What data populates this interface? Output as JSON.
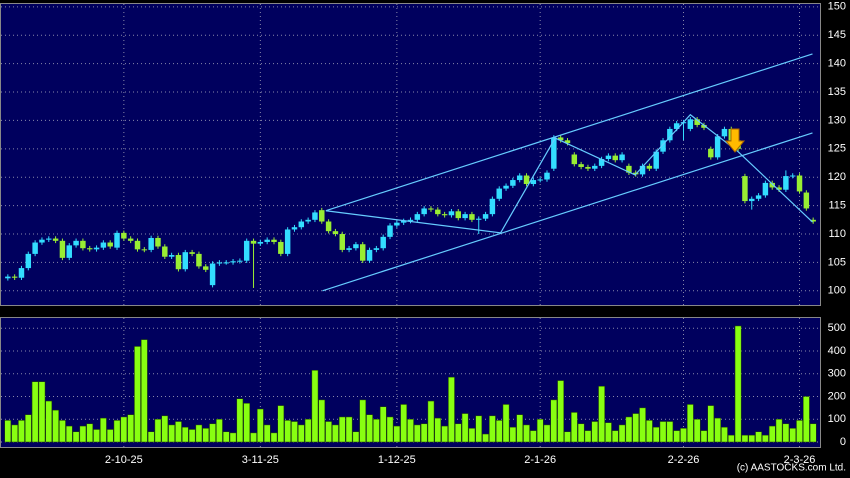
{
  "chart_data": [
    {
      "type": "candlestick",
      "xlim": [
        -1,
        119
      ],
      "ylim": [
        97.5,
        150.5
      ],
      "yticks": [
        100,
        105,
        110,
        115,
        120,
        125,
        130,
        135,
        140,
        145,
        150
      ],
      "xticks": [
        17,
        37,
        57,
        78,
        99,
        116
      ],
      "grid": true,
      "up_color": "#33ddff",
      "down_color": "#99ee33",
      "open": [
        102.2,
        102.5,
        102.3,
        104,
        106.5,
        108.5,
        109,
        109.2,
        108.8,
        105.8,
        108,
        108.8,
        107.5,
        107.3,
        107.6,
        108.5,
        107.6,
        110.2,
        109.2,
        108.8,
        107.3,
        107.2,
        109.3,
        107.8,
        106,
        106.3,
        103.8,
        106.8,
        106.5,
        104.3,
        101,
        104.8,
        105,
        105,
        105.2,
        105.3,
        108.8,
        108.3,
        108.6,
        109,
        108.6,
        106.5,
        110.8,
        111.2,
        112.2,
        112.5,
        114.2,
        112.2,
        110.5,
        110,
        107.2,
        107.5,
        108.2,
        105.3,
        107.2,
        107.5,
        109.5,
        111.5,
        112,
        112.3,
        112.5,
        113.5,
        114.5,
        114.3,
        113.5,
        113.3,
        114,
        112.8,
        113.5,
        112.5,
        112.7,
        113.5,
        116.2,
        118,
        118.5,
        119.5,
        120.3,
        118.8,
        119.5,
        119.6,
        121.5,
        127,
        126.5,
        124,
        122.3,
        121.8,
        121.5,
        122,
        123.2,
        123.8,
        123,
        122,
        120.8,
        120.5,
        122,
        121.5,
        124.5,
        126.5,
        128.5,
        129.5,
        128.5,
        130.2,
        129.2,
        125,
        123.5,
        127.2,
        128.5,
        126.5,
        120.2,
        115.8,
        116.2,
        116.8,
        119,
        118.2,
        117.8,
        120.2,
        120.3,
        117.3,
        112.5
      ],
      "high": [
        102.9,
        102.9,
        104.4,
        106.9,
        108.9,
        109.4,
        109.6,
        109.6,
        109.2,
        108.4,
        109.2,
        109.2,
        107.9,
        108,
        108.9,
        108.9,
        110.6,
        110.6,
        109.6,
        109.2,
        107.7,
        109.7,
        109.7,
        108.2,
        106.7,
        106.7,
        107.2,
        107.2,
        106.9,
        104.7,
        105.2,
        105.4,
        105.4,
        105.6,
        105.7,
        109.2,
        109.2,
        109,
        109.4,
        109.4,
        109,
        111.2,
        111.6,
        112.6,
        112.9,
        114.2,
        114.6,
        112.6,
        110.9,
        110.4,
        107.9,
        108.6,
        108.6,
        107.6,
        107.9,
        109.9,
        111.9,
        112.4,
        112.7,
        112.9,
        113.9,
        114.9,
        114.9,
        114.7,
        113.9,
        114.4,
        114.4,
        113.9,
        113.9,
        113.1,
        113.9,
        116.6,
        118.4,
        118.9,
        119.9,
        120.7,
        120.7,
        119.9,
        120,
        121.2,
        127.4,
        127.4,
        126.9,
        124.4,
        122.7,
        122.2,
        122.4,
        123.6,
        124.2,
        124.2,
        124.4,
        122.4,
        121.2,
        122.4,
        122.4,
        124.9,
        126.9,
        128.9,
        129.9,
        130.1,
        130.6,
        130.6,
        129.6,
        125.4,
        127.6,
        128.9,
        128.9,
        126.9,
        120.6,
        116.6,
        117.2,
        119.4,
        119.4,
        118.6,
        121.2,
        120.7,
        120.7,
        117.7,
        112.9
      ],
      "low": [
        101.8,
        101.9,
        101.9,
        103.6,
        106.1,
        108.1,
        108.6,
        108.4,
        105.4,
        105.4,
        107.6,
        107.1,
        106.9,
        106.9,
        107.2,
        107.4,
        107.2,
        108.8,
        108.4,
        106.9,
        106.8,
        106.8,
        107.4,
        105.6,
        105.6,
        103.4,
        103.4,
        106.1,
        103.9,
        103.3,
        100.6,
        104.4,
        104.6,
        104.6,
        104.8,
        104.9,
        100.5,
        107.9,
        108.2,
        108.2,
        106.1,
        106.1,
        110.4,
        110.8,
        111.8,
        112.1,
        111.8,
        110.1,
        109.6,
        106.8,
        106.8,
        107.1,
        104.9,
        104.9,
        106.8,
        107.1,
        109.1,
        111.1,
        111.6,
        111.9,
        112.1,
        113.1,
        113.9,
        113.1,
        112.9,
        112.9,
        112.4,
        112.4,
        112.1,
        110,
        112.3,
        113.1,
        115.8,
        117.6,
        118.1,
        119.1,
        118.4,
        118.4,
        119.1,
        119.2,
        121.1,
        126.1,
        125.6,
        121.9,
        121.4,
        121.1,
        121.1,
        121.6,
        122.8,
        122.6,
        122.6,
        120.4,
        120.1,
        120.1,
        121.1,
        121.1,
        124.1,
        126.1,
        128.1,
        126.5,
        128.1,
        128.8,
        128.3,
        123.1,
        123.1,
        126.8,
        126.1,
        124.6,
        115.4,
        114.3,
        115.8,
        116.4,
        117.8,
        117.4,
        117.4,
        119.8,
        117.1,
        114.1,
        111.8
      ],
      "close": [
        102.5,
        102.3,
        104,
        106.5,
        108.5,
        109,
        109.2,
        108.8,
        105.8,
        108,
        108.8,
        107.5,
        107.3,
        107.6,
        108.5,
        107.8,
        110.2,
        109.2,
        108.8,
        107.3,
        107.2,
        109.3,
        107.8,
        106,
        106.3,
        103.8,
        106.8,
        106.5,
        104.3,
        103.7,
        104.8,
        105,
        105,
        105.2,
        105.3,
        108.8,
        108.3,
        108.6,
        109,
        108.6,
        106.5,
        110.8,
        111.2,
        112.2,
        112.5,
        113.8,
        112.2,
        110.5,
        110,
        107.2,
        107.5,
        108.2,
        105.3,
        107.2,
        107.5,
        109.5,
        111.5,
        112,
        112.3,
        112.5,
        113.5,
        114.5,
        114.3,
        113.5,
        113.3,
        114,
        112.8,
        113.5,
        112.5,
        112.7,
        113.5,
        116.2,
        118,
        118.5,
        119.5,
        120.3,
        118.8,
        119.5,
        119.6,
        120.8,
        127,
        126.5,
        126,
        122.3,
        121.8,
        121.5,
        122,
        123.2,
        123.8,
        123,
        124,
        120.8,
        120.5,
        122,
        121.5,
        124.5,
        126.5,
        128.5,
        129.5,
        129.7,
        130.2,
        129.2,
        128.7,
        123.5,
        127.2,
        128.5,
        126.5,
        125,
        115.8,
        116.2,
        116.8,
        119,
        118.2,
        117.8,
        120.2,
        120.3,
        117.5,
        114.5,
        112.2
      ],
      "lines": [
        {
          "color": "#66ccff",
          "x": [
            46.6,
            117.9
          ],
          "y": [
            114.1,
            141.7
          ]
        },
        {
          "color": "#66ccff",
          "x": [
            46.1,
            117.9
          ],
          "y": [
            100,
            127.8
          ]
        },
        {
          "color": "#66ccff",
          "x": [
            46.6,
            72.2,
            80.2,
            91.9,
            100,
            107,
            117.9
          ],
          "y": [
            114.1,
            110.2,
            126.9,
            120.4,
            131,
            124.5,
            112.1
          ]
        }
      ]
    },
    {
      "type": "bar",
      "xlim": [
        -1,
        119
      ],
      "ylim": [
        -22,
        545
      ],
      "yticks": [
        0,
        100,
        200,
        300,
        400,
        500
      ],
      "xticks": [
        {
          "value": 17,
          "label": "2-10-25"
        },
        {
          "value": 37,
          "label": "3-11-25"
        },
        {
          "value": 57,
          "label": "1-12-25"
        },
        {
          "value": 78,
          "label": "2-1-26"
        },
        {
          "value": 99,
          "label": "2-2-26"
        },
        {
          "value": 116,
          "label": "2-3-26"
        }
      ],
      "grid": true,
      "color": "#88ff11",
      "source": "(c) AASTOCKS.com Ltd.",
      "values": [
        95,
        75,
        95,
        120,
        265,
        265,
        180,
        140,
        95,
        70,
        45,
        70,
        80,
        55,
        105,
        55,
        95,
        110,
        120,
        420,
        450,
        45,
        100,
        115,
        75,
        90,
        65,
        55,
        75,
        60,
        80,
        100,
        45,
        40,
        190,
        170,
        40,
        145,
        75,
        40,
        160,
        95,
        90,
        75,
        100,
        315,
        185,
        90,
        75,
        110,
        110,
        45,
        185,
        120,
        100,
        155,
        110,
        70,
        165,
        100,
        75,
        80,
        180,
        105,
        70,
        285,
        80,
        125,
        60,
        115,
        35,
        115,
        95,
        165,
        65,
        120,
        75,
        50,
        100,
        75,
        185,
        270,
        45,
        130,
        80,
        50,
        90,
        245,
        85,
        50,
        75,
        110,
        125,
        150,
        95,
        65,
        90,
        90,
        50,
        60,
        165,
        100,
        50,
        160,
        105,
        65,
        30,
        510,
        30,
        30,
        45,
        30,
        70,
        100,
        80,
        60,
        95,
        200,
        80
      ]
    }
  ]
}
